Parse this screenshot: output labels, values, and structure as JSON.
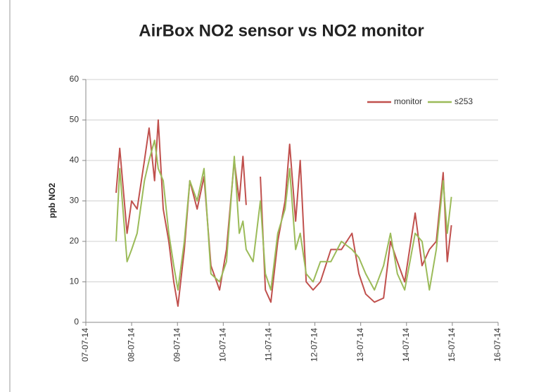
{
  "chart_data": {
    "type": "line",
    "title": "AirBox NO2 sensor vs NO2 monitor",
    "y_label": "ppb NO2",
    "x": [
      0.66,
      0.74,
      0.9,
      1.0,
      1.12,
      1.28,
      1.38,
      1.5,
      1.58,
      1.69,
      1.81,
      1.92,
      2.01,
      2.15,
      2.27,
      2.43,
      2.58,
      2.73,
      2.92,
      3.07,
      3.24,
      3.35,
      3.43,
      3.5,
      3.65,
      3.81,
      3.92,
      4.04,
      4.19,
      4.35,
      4.45,
      4.58,
      4.68,
      4.81,
      4.96,
      5.12,
      5.35,
      5.58,
      5.81,
      5.96,
      6.11,
      6.3,
      6.5,
      6.65,
      6.8,
      6.96,
      7.19,
      7.34,
      7.5,
      7.65,
      7.8,
      7.89,
      7.98
    ],
    "series": [
      {
        "name": "monitor",
        "color": "#c0504d",
        "values": [
          32,
          43,
          22,
          30,
          28,
          40,
          48,
          35,
          50,
          28,
          20,
          10,
          4,
          18,
          35,
          28,
          36,
          14,
          8,
          18,
          40,
          30,
          41,
          29,
          null,
          36,
          8,
          5,
          20,
          30,
          44,
          25,
          40,
          10,
          8,
          10,
          18,
          18,
          22,
          12,
          7,
          5,
          6,
          20,
          15,
          10,
          27,
          14,
          18,
          20,
          37,
          15,
          24
        ]
      },
      {
        "name": "s253",
        "color": "#9bbb59",
        "values": [
          20,
          38,
          15,
          18,
          22,
          35,
          40,
          45,
          38,
          35,
          22,
          14,
          8,
          20,
          35,
          30,
          38,
          12,
          10,
          15,
          41,
          22,
          25,
          18,
          15,
          30,
          12,
          8,
          22,
          28,
          38,
          18,
          22,
          12,
          10,
          15,
          15,
          20,
          18,
          16,
          12,
          8,
          14,
          22,
          12,
          8,
          22,
          20,
          8,
          18,
          35,
          22,
          31
        ]
      }
    ],
    "xlim": [
      0,
      9
    ],
    "xticks": [
      {
        "value": 0,
        "label": "07-07-14"
      },
      {
        "value": 1,
        "label": "08-07-14"
      },
      {
        "value": 2,
        "label": "09-07-14"
      },
      {
        "value": 3,
        "label": "10-07-14"
      },
      {
        "value": 4,
        "label": "11-07-14"
      },
      {
        "value": 5,
        "label": "12-07-14"
      },
      {
        "value": 6,
        "label": "13-07-14"
      },
      {
        "value": 7,
        "label": "14-07-14"
      },
      {
        "value": 8,
        "label": "15-07-14"
      },
      {
        "value": 9,
        "label": "16-07-14"
      }
    ],
    "ylim": [
      0,
      60
    ],
    "yticks": [
      0,
      10,
      20,
      30,
      40,
      50,
      60
    ],
    "grid": true,
    "legend": "upper right"
  }
}
